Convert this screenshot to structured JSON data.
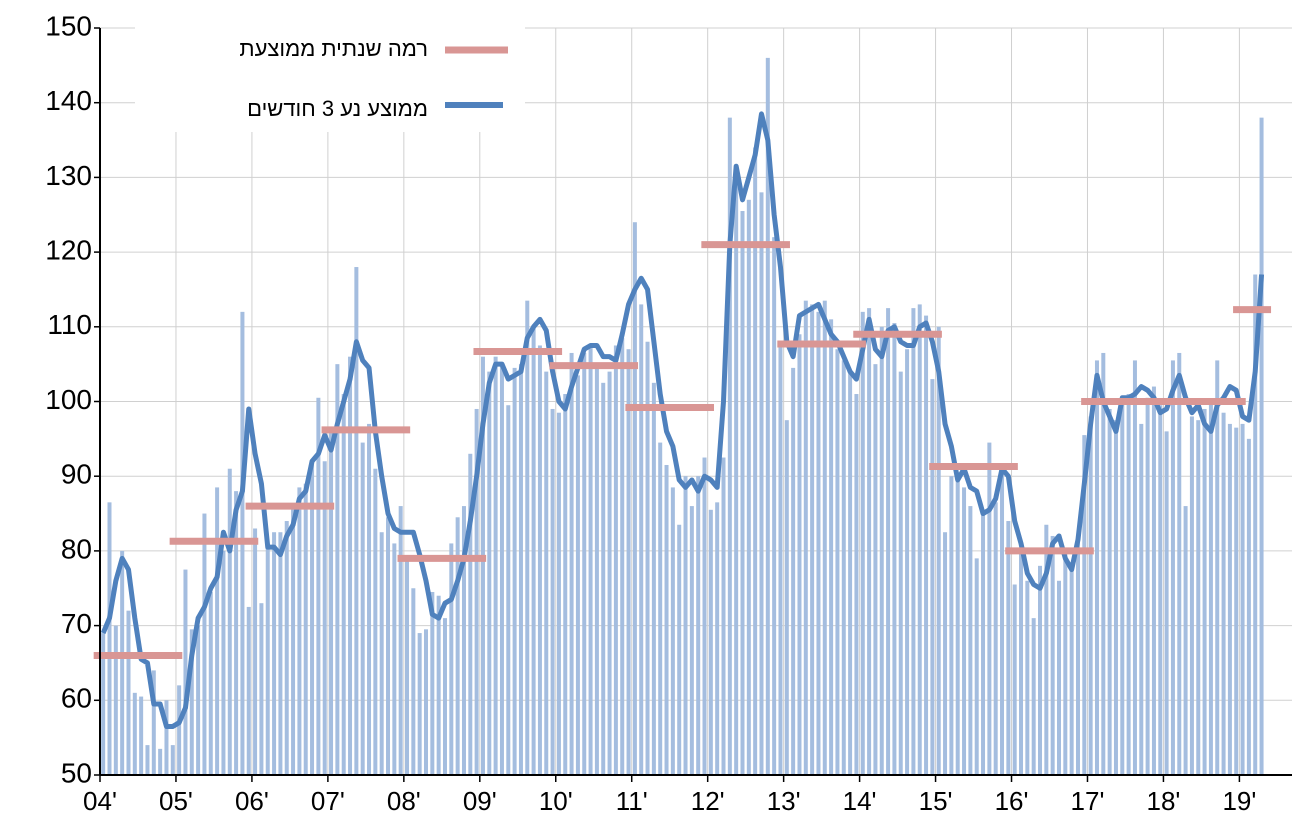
{
  "chart_data": {
    "type": "bar",
    "categories": [
      "04'",
      null,
      null,
      null,
      null,
      null,
      null,
      null,
      null,
      null,
      null,
      null,
      "05'",
      null,
      null,
      null,
      null,
      null,
      null,
      null,
      null,
      null,
      null,
      null,
      "06'",
      null,
      null,
      null,
      null,
      null,
      null,
      null,
      null,
      null,
      null,
      null,
      "07'",
      null,
      null,
      null,
      null,
      null,
      null,
      null,
      null,
      null,
      null,
      null,
      "08'",
      null,
      null,
      null,
      null,
      null,
      null,
      null,
      null,
      null,
      null,
      null,
      "09'",
      null,
      null,
      null,
      null,
      null,
      null,
      null,
      null,
      null,
      null,
      null,
      "10'",
      null,
      null,
      null,
      null,
      null,
      null,
      null,
      null,
      null,
      null,
      null,
      "11'",
      null,
      null,
      null,
      null,
      null,
      null,
      null,
      null,
      null,
      null,
      null,
      "12'",
      null,
      null,
      null,
      null,
      null,
      null,
      null,
      null,
      null,
      null,
      null,
      "13'",
      null,
      null,
      null,
      null,
      null,
      null,
      null,
      null,
      null,
      null,
      null,
      "14'",
      null,
      null,
      null,
      null,
      null,
      null,
      null,
      null,
      null,
      null,
      null,
      "15'",
      null,
      null,
      null,
      null,
      null,
      null,
      null,
      null,
      null,
      null,
      null,
      "16'",
      null,
      null,
      null,
      null,
      null,
      null,
      null,
      null,
      null,
      null,
      null,
      "17'",
      null,
      null,
      null,
      null,
      null,
      null,
      null,
      null,
      null,
      null,
      null,
      "18'",
      null,
      null,
      null,
      null,
      null,
      null,
      null,
      null,
      null,
      null,
      null,
      "19'",
      null,
      null,
      null
    ],
    "series": [
      {
        "type": "bar",
        "color": "#a4bddf",
        "values": [
          69,
          86.5,
          70,
          80,
          72,
          61,
          60.5,
          54,
          64,
          53.5,
          60,
          54,
          62,
          77.5,
          69.5,
          70,
          85,
          74.5,
          88.5,
          80,
          91,
          88,
          112,
          72.5,
          83,
          73,
          81,
          82.5,
          82.5,
          84,
          86,
          88.5,
          89,
          92,
          100.5,
          92,
          96,
          105,
          101,
          106,
          118,
          94.5,
          97,
          91,
          82.5,
          84.5,
          81,
          86,
          79,
          75,
          69,
          69.5,
          74.5,
          74,
          71,
          81,
          84.5,
          86,
          93,
          99,
          106,
          104,
          106,
          105,
          99.5,
          104.5,
          105,
          113.5,
          110,
          107.5,
          104,
          99,
          98.5,
          101,
          106.5,
          103.5,
          106.5,
          107.5,
          105,
          102.5,
          104,
          107.5,
          108.5,
          107,
          124,
          113,
          108,
          102.5,
          94.5,
          91.5,
          88.5,
          83.5,
          90,
          86,
          90,
          92.5,
          85.5,
          86.5,
          92.5,
          138,
          130.5,
          125.5,
          127,
          134,
          128,
          146,
          122,
          108,
          97.5,
          104.5,
          109,
          113.5,
          113,
          112,
          113.5,
          111,
          107,
          105.5,
          104,
          101,
          112,
          112.5,
          105,
          110,
          112.5,
          110.5,
          104,
          107,
          112.5,
          113,
          111.5,
          103,
          110,
          82.5,
          90,
          89.5,
          88.5,
          86,
          79,
          85,
          94.5,
          86.5,
          90.5,
          84,
          75.5,
          80,
          76,
          71,
          78,
          83.5,
          82,
          76,
          80,
          77.5,
          82,
          95.5,
          98,
          105.5,
          106.5,
          99,
          97.5,
          100,
          101,
          105.5,
          97,
          100.5,
          102,
          99.5,
          96,
          105.5,
          106.5,
          86,
          98,
          97.5,
          99,
          100,
          105.5,
          98.5,
          97,
          96.5,
          97,
          95,
          117,
          138
        ]
      },
      {
        "name": "ממוצע נע 3 חודשים",
        "type": "line",
        "color": "#4f81bd",
        "values": [
          69,
          71,
          76,
          79,
          77.5,
          71,
          65.5,
          65,
          59.5,
          59.5,
          56.5,
          56.5,
          57,
          59,
          66,
          71,
          72.5,
          75,
          76.5,
          82.5,
          80,
          85.5,
          88,
          99,
          93,
          89,
          80.5,
          80.5,
          79.5,
          82,
          83.5,
          87,
          88,
          92,
          93,
          95.5,
          93.5,
          97,
          100,
          103,
          108,
          105.5,
          104.5,
          96,
          90,
          85,
          83,
          82.5,
          82.5,
          82.5,
          79.5,
          76,
          71.5,
          71,
          73,
          73.5,
          76,
          79,
          84,
          90,
          97,
          102.5,
          105,
          105,
          103,
          103.5,
          104,
          108.5,
          110,
          111,
          109.5,
          104,
          100,
          99,
          102,
          104.5,
          107,
          107.5,
          107.5,
          106,
          106,
          105.5,
          109,
          113,
          115,
          116.5,
          115,
          108,
          101,
          96,
          94,
          89.5,
          88.5,
          89.5,
          88,
          90,
          89.5,
          88.5,
          100,
          121,
          131.5,
          127,
          130,
          133,
          138.5,
          135,
          125,
          118,
          108,
          106,
          111.5,
          112,
          112.5,
          113,
          111,
          109,
          108,
          106,
          104,
          103,
          107,
          111,
          107,
          106,
          109.5,
          110,
          108,
          107.5,
          107.5,
          110,
          110.5,
          108,
          104,
          97,
          94,
          89.5,
          91,
          88.5,
          88,
          85,
          85.5,
          87,
          91,
          90,
          84,
          81,
          77,
          75.5,
          75,
          77,
          81,
          82,
          79,
          77.5,
          81.5,
          89,
          97,
          103.5,
          100,
          98,
          96,
          100.5,
          100.5,
          101,
          102,
          101.5,
          100.5,
          98.5,
          99,
          101.5,
          103.5,
          100.5,
          98.5,
          99.5,
          97,
          96,
          99.5,
          100.5,
          102,
          101.5,
          98,
          97.5,
          104,
          117
        ]
      }
    ],
    "annual_levels": {
      "name": "רמה שנתית ממוצעת",
      "color": "#d99694",
      "values": [
        66,
        81.3,
        86,
        96.2,
        79,
        106.7,
        104.8,
        99.2,
        121,
        107.7,
        109,
        91.3,
        80,
        100,
        100,
        112.3
      ]
    },
    "ylim": [
      50,
      150
    ],
    "yticks": [
      50,
      60,
      70,
      80,
      90,
      100,
      110,
      120,
      130,
      140,
      150
    ],
    "grid": true,
    "legend": "top-left"
  }
}
